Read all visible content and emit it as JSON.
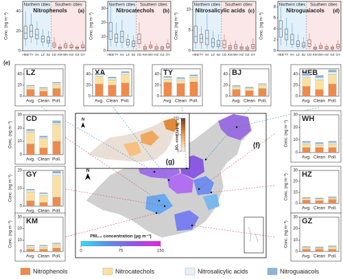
{
  "chart_data": [
    {
      "type": "box",
      "label": "(a)",
      "title": "Nitrophenols",
      "y_label": "Conc. (ng m⁻³)",
      "north_label": "Northern cities",
      "north_color": "#2e8fd6",
      "south_label": "Southern cities",
      "south_color": "#e04848",
      "categories": [
        "HEB",
        "TY",
        "XA",
        "LZ",
        "BJ",
        "CD",
        "KM",
        "WH",
        "HZ",
        "GZ",
        "GY"
      ],
      "ylim": [
        0,
        50
      ],
      "yticks": [
        0,
        20,
        40
      ],
      "boxes": [
        {
          "color": "#2e8fd6",
          "low": 5,
          "q1": 12,
          "median": 18,
          "q3": 25,
          "high": 40
        },
        {
          "color": "#2e8fd6",
          "low": 8,
          "q1": 14,
          "median": 20,
          "q3": 26,
          "high": 38
        },
        {
          "color": "#2e8fd6",
          "low": 6,
          "q1": 12,
          "median": 16,
          "q3": 22,
          "high": 30
        },
        {
          "color": "#2e8fd6",
          "low": 5,
          "q1": 9,
          "median": 12,
          "q3": 15,
          "high": 22
        },
        {
          "color": "#2e8fd6",
          "low": 4,
          "q1": 8,
          "median": 10,
          "q3": 14,
          "high": 20
        },
        {
          "color": "#e04848",
          "low": 2,
          "q1": 4,
          "median": 6,
          "q3": 8,
          "high": 14
        },
        {
          "color": "#e04848",
          "low": 1,
          "q1": 2,
          "median": 3,
          "q3": 4,
          "high": 7
        },
        {
          "color": "#e04848",
          "low": 2,
          "q1": 3,
          "median": 5,
          "q3": 7,
          "high": 10
        },
        {
          "color": "#e04848",
          "low": 1,
          "q1": 3,
          "median": 4,
          "q3": 6,
          "high": 9
        },
        {
          "color": "#e04848",
          "low": 1,
          "q1": 2,
          "median": 3,
          "q3": 4,
          "high": 6
        },
        {
          "color": "#e04848",
          "low": 1,
          "q1": 3,
          "median": 4,
          "q3": 6,
          "high": 10
        }
      ]
    },
    {
      "type": "box",
      "label": "(b)",
      "title": "Nitrocatechols",
      "y_label": "Conc. (ng m⁻³)",
      "north_label": "Northern cities",
      "north_color": "#2e8fd6",
      "south_label": "Southern cities",
      "south_color": "#e04848",
      "categories": [
        "HEB",
        "TY",
        "XA",
        "LZ",
        "BJ",
        "CD",
        "KM",
        "WH",
        "HZ",
        "GZ",
        "GY"
      ],
      "ylim": [
        0,
        35
      ],
      "yticks": [
        0,
        10,
        20,
        30
      ],
      "boxes": [
        {
          "color": "#2e8fd6",
          "low": 3,
          "q1": 8,
          "median": 14,
          "q3": 20,
          "high": 32
        },
        {
          "color": "#2e8fd6",
          "low": 3,
          "q1": 6,
          "median": 9,
          "q3": 12,
          "high": 20
        },
        {
          "color": "#2e8fd6",
          "low": 2,
          "q1": 6,
          "median": 10,
          "q3": 14,
          "high": 22
        },
        {
          "color": "#2e8fd6",
          "low": 2,
          "q1": 4,
          "median": 6,
          "q3": 8,
          "high": 12
        },
        {
          "color": "#2e8fd6",
          "low": 1,
          "q1": 3,
          "median": 5,
          "q3": 7,
          "high": 11
        },
        {
          "color": "#e04848",
          "low": 2,
          "q1": 5,
          "median": 8,
          "q3": 12,
          "high": 20
        },
        {
          "color": "#e04848",
          "low": 0.5,
          "q1": 1,
          "median": 2,
          "q3": 3,
          "high": 5
        },
        {
          "color": "#e04848",
          "low": 1,
          "q1": 2,
          "median": 3,
          "q3": 4,
          "high": 7
        },
        {
          "color": "#e04848",
          "low": 0.5,
          "q1": 1,
          "median": 2,
          "q3": 3,
          "high": 5
        },
        {
          "color": "#e04848",
          "low": 0.5,
          "q1": 1,
          "median": 2,
          "q3": 3,
          "high": 4
        },
        {
          "color": "#e04848",
          "low": 1,
          "q1": 2,
          "median": 3,
          "q3": 5,
          "high": 8
        }
      ]
    },
    {
      "type": "box",
      "label": "(c)",
      "title": "Nitrosalicylic acids",
      "y_label": "Conc. (ng m⁻³)",
      "north_label": "Northern cities",
      "north_color": "#2e8fd6",
      "south_label": "Southern cities",
      "south_color": "#e04848",
      "categories": [
        "HEB",
        "TY",
        "XA",
        "LZ",
        "BJ",
        "CD",
        "KM",
        "WH",
        "HZ",
        "GZ",
        "GY"
      ],
      "ylim": [
        0,
        12
      ],
      "yticks": [
        0,
        5,
        10
      ],
      "boxes": [
        {
          "color": "#2e8fd6",
          "low": 0.5,
          "q1": 2,
          "median": 3.5,
          "q3": 6,
          "high": 10
        },
        {
          "color": "#2e8fd6",
          "low": 0.5,
          "q1": 2,
          "median": 3,
          "q3": 4,
          "high": 6
        },
        {
          "color": "#2e8fd6",
          "low": 0.5,
          "q1": 1.5,
          "median": 3,
          "q3": 5,
          "high": 9
        },
        {
          "color": "#2e8fd6",
          "low": 0.5,
          "q1": 1,
          "median": 2,
          "q3": 3,
          "high": 5
        },
        {
          "color": "#2e8fd6",
          "low": 0.3,
          "q1": 1,
          "median": 1.5,
          "q3": 2.5,
          "high": 4
        },
        {
          "color": "#e04848",
          "low": 0.2,
          "q1": 0.8,
          "median": 1.5,
          "q3": 2.5,
          "high": 4
        },
        {
          "color": "#e04848",
          "low": 0.1,
          "q1": 0.4,
          "median": 0.8,
          "q3": 1.2,
          "high": 2
        },
        {
          "color": "#e04848",
          "low": 0.2,
          "q1": 0.5,
          "median": 1,
          "q3": 1.5,
          "high": 2.5
        },
        {
          "color": "#e04848",
          "low": 0.1,
          "q1": 0.4,
          "median": 0.7,
          "q3": 1,
          "high": 1.8
        },
        {
          "color": "#e04848",
          "low": 0.1,
          "q1": 0.3,
          "median": 0.6,
          "q3": 0.9,
          "high": 1.5
        },
        {
          "color": "#e04848",
          "low": 0.2,
          "q1": 0.6,
          "median": 1,
          "q3": 1.6,
          "high": 3
        }
      ]
    },
    {
      "type": "box",
      "label": "(d)",
      "title": "Nitroguaiacols",
      "y_label": "Conc. (ng m⁻³)",
      "north_label": "Northern cities",
      "north_color": "#2e8fd6",
      "south_label": "Southern cities",
      "south_color": "#e04848",
      "categories": [
        "HEB",
        "TY",
        "XA",
        "LZ",
        "BJ",
        "CD",
        "KM",
        "WH",
        "HZ",
        "GZ",
        "GY"
      ],
      "ylim": [
        0,
        9
      ],
      "yticks": [
        0,
        2,
        4,
        6,
        8
      ],
      "boxes": [
        {
          "color": "#2e8fd6",
          "low": 1,
          "q1": 2.5,
          "median": 4,
          "q3": 5.5,
          "high": 8
        },
        {
          "color": "#2e8fd6",
          "low": 0.8,
          "q1": 2,
          "median": 3,
          "q3": 4,
          "high": 6
        },
        {
          "color": "#2e8fd6",
          "low": 0.5,
          "q1": 1.2,
          "median": 2,
          "q3": 3,
          "high": 5
        },
        {
          "color": "#2e8fd6",
          "low": 0.3,
          "q1": 0.8,
          "median": 1.2,
          "q3": 1.8,
          "high": 3
        },
        {
          "color": "#2e8fd6",
          "low": 0.3,
          "q1": 0.7,
          "median": 1,
          "q3": 1.5,
          "high": 2.5
        },
        {
          "color": "#e04848",
          "low": 0.3,
          "q1": 0.8,
          "median": 1.3,
          "q3": 2,
          "high": 3.2
        },
        {
          "color": "#e04848",
          "low": 0.1,
          "q1": 0.3,
          "median": 0.5,
          "q3": 0.7,
          "high": 1.2
        },
        {
          "color": "#e04848",
          "low": 0.2,
          "q1": 0.4,
          "median": 0.7,
          "q3": 1,
          "high": 1.6
        },
        {
          "color": "#e04848",
          "low": 0.1,
          "q1": 0.3,
          "median": 0.5,
          "q3": 0.8,
          "high": 1.3
        },
        {
          "color": "#e04848",
          "low": 0.1,
          "q1": 0.3,
          "median": 0.5,
          "q3": 0.7,
          "high": 1.1
        },
        {
          "color": "#e04848",
          "low": 0.2,
          "q1": 0.5,
          "median": 0.8,
          "q3": 1.2,
          "high": 2
        }
      ]
    },
    {
      "type": "bar_panels",
      "label": "(e)",
      "categories": [
        "Avg.",
        "Clean",
        "Poll."
      ],
      "series": [
        {
          "name": "Nitrophenols",
          "color": "#f08a4b"
        },
        {
          "name": "Nitrocatechols",
          "color": "#fbe0a0"
        },
        {
          "name": "Nitrosalicylic acids",
          "color": "#e4f2f8"
        },
        {
          "name": "Nitroguaiacols",
          "color": "#8db4d8"
        }
      ],
      "panels": [
        {
          "title": "LZ",
          "title_color": "#2e8fd6",
          "ylim": [
            0,
            50
          ],
          "yticks": [
            0,
            20,
            40
          ],
          "values": [
            [
              12,
              9,
              14
            ],
            [
              5,
              4,
              8
            ],
            [
              2,
              2,
              2
            ],
            [
              1,
              1,
              1.5
            ]
          ]
        },
        {
          "title": "XA",
          "title_color": "#2e8fd6",
          "ylim": [
            0,
            50
          ],
          "yticks": [
            0,
            20,
            40
          ],
          "values": [
            [
              22,
              20,
              24
            ],
            [
              14,
              10,
              16
            ],
            [
              3,
              3,
              3
            ],
            [
              2,
              2,
              2
            ]
          ]
        },
        {
          "title": "TY",
          "title_color": "#2e8fd6",
          "ylim": [
            0,
            50
          ],
          "yticks": [
            0,
            20,
            40
          ],
          "values": [
            [
              25,
              23,
              26
            ],
            [
              6,
              6,
              8
            ],
            [
              3,
              3,
              3
            ],
            [
              2,
              2,
              2
            ]
          ]
        },
        {
          "title": "BJ",
          "title_color": "#2e8fd6",
          "ylim": [
            0,
            50
          ],
          "yticks": [
            0,
            20,
            40
          ],
          "values": [
            [
              12,
              10,
              14
            ],
            [
              5,
              4,
              6
            ],
            [
              1.5,
              1.5,
              2
            ],
            [
              1,
              1,
              1
            ]
          ]
        },
        {
          "title": "HEB",
          "title_color": "#2e8fd6",
          "ylim": [
            0,
            50
          ],
          "yticks": [
            0,
            20,
            40
          ],
          "values": [
            [
              18,
              12,
              22
            ],
            [
              16,
              18,
              18
            ],
            [
              4,
              4,
              4
            ],
            [
              4,
              4,
              4
            ]
          ]
        },
        {
          "title": "CD",
          "title_color": "#e04848",
          "y_label": "Conc. (ng m⁻³)",
          "ylim": [
            0,
            30
          ],
          "yticks": [
            0,
            10,
            20,
            30
          ],
          "values": [
            [
              8,
              5,
              10
            ],
            [
              9,
              7,
              13
            ],
            [
              1,
              1,
              1
            ],
            [
              1,
              1,
              1.5
            ]
          ]
        },
        {
          "title": "GY",
          "title_color": "#e04848",
          "y_label": "Conc. (ng m⁻³)",
          "ylim": [
            0,
            20
          ],
          "yticks": [
            0,
            10,
            20
          ],
          "values": [
            [
              3,
              2,
              5
            ],
            [
              5,
              4,
              12
            ],
            [
              1,
              1,
              1.5
            ],
            [
              0.5,
              0.5,
              1
            ]
          ]
        },
        {
          "title": "KM",
          "title_color": "#e04848",
          "y_label": "Conc. (ng m⁻³)",
          "ylim": [
            0,
            30
          ],
          "yticks": [
            0,
            10,
            20,
            30
          ],
          "values": [
            [
              2,
              2,
              3
            ],
            [
              2,
              2,
              3
            ],
            [
              1,
              1,
              1
            ],
            [
              0.5,
              0.5,
              0.5
            ]
          ]
        },
        {
          "title": "WH",
          "title_color": "#e04848",
          "y_label": "Conc. (ng m⁻³)",
          "ylim": [
            0,
            30
          ],
          "yticks": [
            0,
            10,
            20,
            30
          ],
          "values": [
            [
              4,
              4,
              4
            ],
            [
              3,
              2,
              3
            ],
            [
              1,
              1,
              1
            ],
            [
              1,
              1,
              1
            ]
          ]
        },
        {
          "title": "HZ",
          "title_color": "#e04848",
          "y_label": "Conc. (ng m⁻³)",
          "ylim": [
            0,
            30
          ],
          "yticks": [
            0,
            10,
            20,
            30
          ],
          "values": [
            [
              3,
              2.5,
              3.5
            ],
            [
              1.5,
              1.5,
              1.5
            ],
            [
              0.5,
              0.5,
              0.5
            ],
            [
              0.5,
              0.5,
              0.5
            ]
          ]
        },
        {
          "title": "GZ",
          "title_color": "#e04848",
          "y_label": "Conc. (ng m⁻³)",
          "ylim": [
            0,
            30
          ],
          "yticks": [
            0,
            10,
            20,
            30
          ],
          "values": [
            [
              2,
              2,
              2
            ],
            [
              1.5,
              1,
              2
            ],
            [
              0.5,
              0.5,
              0.5
            ],
            [
              0.5,
              0.5,
              0.5
            ]
          ]
        }
      ]
    },
    {
      "type": "map",
      "label_f": "(f)",
      "label_g": "(g)",
      "north": "N",
      "pm_bar": {
        "label": "PM₂.₅ concentration (µg m⁻³)",
        "lim": [
          0,
          150
        ],
        "ticks": [
          0,
          75,
          150
        ]
      },
      "so2_bar": {
        "label": "SO₂ conc. (µg m⁻³)",
        "lim": [
          0,
          100
        ],
        "ticks": [
          0,
          50,
          100
        ]
      }
    }
  ]
}
